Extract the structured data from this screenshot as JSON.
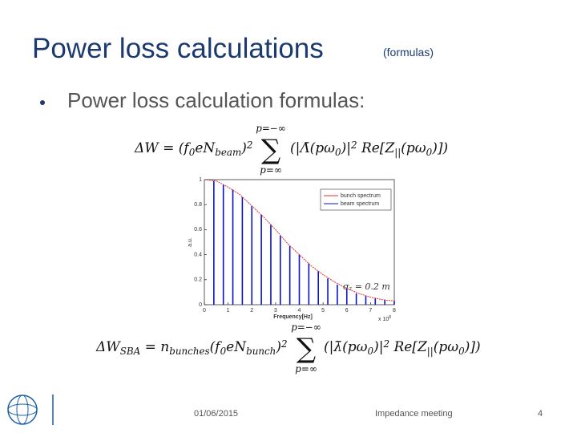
{
  "header": {
    "title": "Power loss calculations",
    "subtitle": "(formulas)"
  },
  "bullet": "Power loss calculation formulas:",
  "formula_1": {
    "lhs": [
      "ΔW = (f",
      "0",
      "eN",
      "beam",
      ")",
      "2"
    ],
    "sum": "∑",
    "upper": "p=−∞",
    "lower": "p=∞",
    "rhs": [
      "(|Λ̄(pω",
      "0",
      ")|",
      "2",
      " Re[Z",
      "||",
      "(pω",
      "0",
      ")])"
    ]
  },
  "formula_2": {
    "lhs": [
      "ΔW",
      "SBA",
      " = n",
      "bunches",
      "(f",
      "0",
      "eN",
      "bunch",
      ")",
      "2"
    ],
    "sum": "∑",
    "upper": "p=−∞",
    "lower": "p=∞",
    "rhs": [
      "(|λ̄(pω",
      "0",
      ")|",
      "2",
      " Re[Z",
      "||",
      "(pω",
      "0",
      ")])"
    ]
  },
  "chart_data": {
    "type": "line",
    "x_label": "Frequency[Hz]",
    "x_multiplier": "x 10",
    "x_multiplier_exp": "8",
    "y_label": "a.u.",
    "annotation": [
      "σ",
      "z",
      " = 0.2 m"
    ],
    "xlim": [
      0,
      8
    ],
    "xticks": [
      0,
      1,
      2,
      3,
      4,
      5,
      6,
      7,
      8
    ],
    "ylim": [
      0,
      1
    ],
    "yticks": [
      0,
      0.2,
      0.4,
      0.6,
      0.8,
      1
    ],
    "legend": "top-right",
    "series": [
      {
        "name": "bunch spectrum",
        "color": "#e03030",
        "style": "line",
        "x": [
          0,
          0.5,
          1,
          1.5,
          2,
          2.5,
          3,
          3.5,
          4,
          4.5,
          5,
          5.5,
          6,
          6.5,
          7,
          7.5,
          8
        ],
        "values": [
          1,
          0.99,
          0.94,
          0.88,
          0.79,
          0.7,
          0.6,
          0.49,
          0.4,
          0.31,
          0.24,
          0.18,
          0.13,
          0.09,
          0.06,
          0.04,
          0.03
        ]
      },
      {
        "name": "beam spectrum",
        "color": "#0a14c8",
        "style": "stem",
        "x": [
          0.4,
          0.8,
          1.2,
          1.6,
          2.0,
          2.4,
          2.8,
          3.2,
          3.6,
          4.0,
          4.4,
          4.8,
          5.2,
          5.6,
          6.0,
          6.4,
          6.8,
          7.2,
          7.6,
          8.0
        ],
        "values": [
          0.99,
          0.96,
          0.92,
          0.86,
          0.79,
          0.72,
          0.64,
          0.55,
          0.47,
          0.4,
          0.33,
          0.27,
          0.21,
          0.16,
          0.13,
          0.09,
          0.07,
          0.05,
          0.04,
          0.03
        ]
      }
    ]
  },
  "footer": {
    "date": "01/06/2015",
    "event": "Impedance meeting",
    "page": "4"
  }
}
